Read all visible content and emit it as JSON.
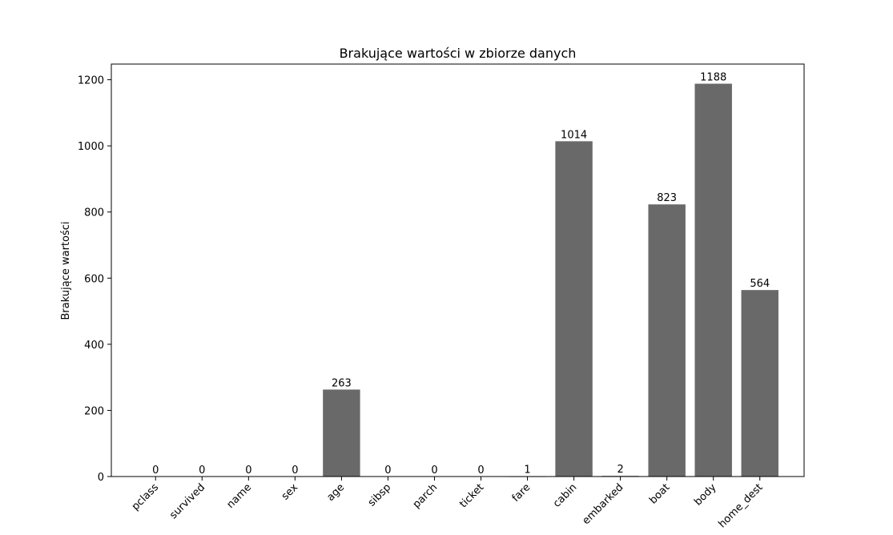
{
  "chart_data": {
    "type": "bar",
    "title": "Brakujące wartości w zbiorze danych",
    "xlabel": "",
    "ylabel": "Brakujące wartości",
    "categories": [
      "pclass",
      "survived",
      "name",
      "sex",
      "age",
      "sibsp",
      "parch",
      "ticket",
      "fare",
      "cabin",
      "embarked",
      "boat",
      "body",
      "home_dest"
    ],
    "values": [
      0,
      0,
      0,
      0,
      263,
      0,
      0,
      0,
      1,
      1014,
      2,
      823,
      1188,
      564
    ],
    "ylim": [
      0,
      1247.4
    ],
    "yticks": [
      0,
      200,
      400,
      600,
      800,
      1000,
      1200
    ],
    "bar_color": "#696969",
    "grid": false,
    "legend": "none"
  }
}
